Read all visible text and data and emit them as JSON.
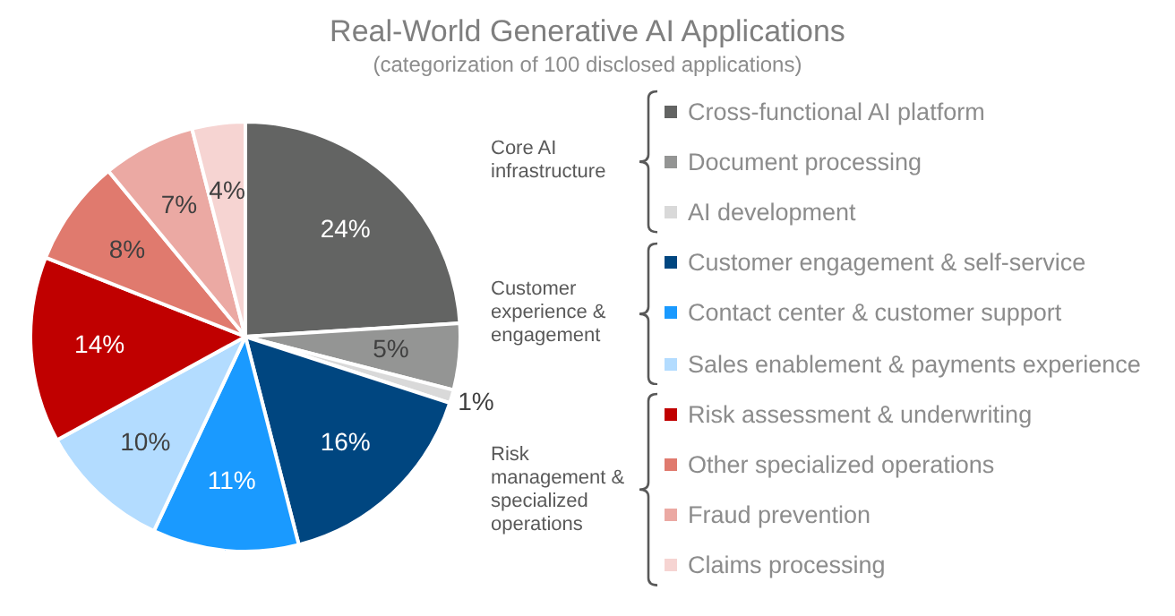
{
  "chart_data": {
    "type": "pie",
    "title": "Real-World Generative AI Applications",
    "subtitle": "(categorization of 100 disclosed applications)",
    "categories": [
      "Cross-functional AI platform",
      "Document processing",
      "AI development",
      "Customer engagement & self-service",
      "Contact center & customer support",
      "Sales enablement & payments experience",
      "Risk assessment & underwriting",
      "Other specialized operations",
      "Fraud prevention",
      "Claims processing"
    ],
    "values": [
      24,
      5,
      1,
      16,
      11,
      10,
      14,
      8,
      7,
      4
    ],
    "colors": [
      "#636463",
      "#949594",
      "#d9d9d9",
      "#004680",
      "#1a9aff",
      "#b3dcff",
      "#c00000",
      "#e07a6e",
      "#eba9a3",
      "#f6d4d2"
    ],
    "value_labels": [
      "24%",
      "5%",
      "1%",
      "16%",
      "11%",
      "10%",
      "14%",
      "8%",
      "7%",
      "4%"
    ],
    "annotations": [
      "Core AI infrastructure",
      "Customer experience & engagement",
      "Risk management & specialized operations"
    ],
    "legend": "right"
  }
}
